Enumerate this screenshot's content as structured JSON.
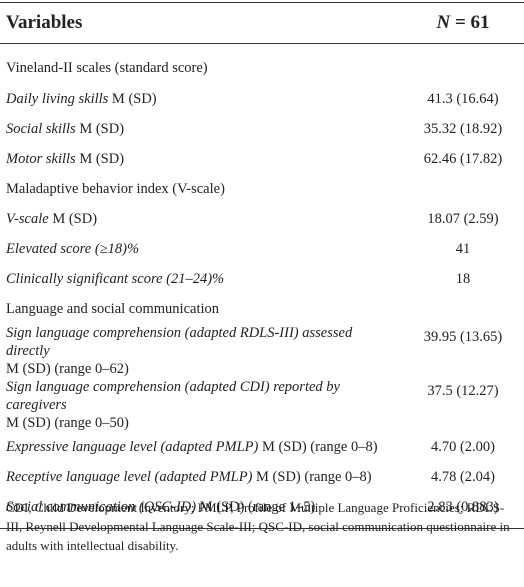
{
  "header": {
    "variables": "Variables",
    "n_symbol": "N",
    "n_value": "= 61"
  },
  "rows": [
    {
      "label": [
        {
          "text": "Vineland-II scales (standard score)",
          "italic": false
        }
      ]
    },
    {
      "label": [
        {
          "text": "Daily living skills",
          "italic": true
        },
        {
          "text": "M (SD)",
          "italic": false
        }
      ],
      "value": "41.3 (16.64)"
    },
    {
      "label": [
        {
          "text": "Social skills",
          "italic": true
        },
        {
          "text": "M (SD)",
          "italic": false
        }
      ],
      "value": "35.32 (18.92)"
    },
    {
      "label": [
        {
          "text": "Motor skills",
          "italic": true
        },
        {
          "text": "M (SD)",
          "italic": false
        }
      ],
      "value": "62.46 (17.82)"
    },
    {
      "label": [
        {
          "text": "Maladaptive behavior index (V-scale)",
          "italic": false
        }
      ]
    },
    {
      "label": [
        {
          "text": "V-scale",
          "italic": true
        },
        {
          "text": "M (SD)",
          "italic": false
        }
      ],
      "value": "18.07 (2.59)"
    },
    {
      "label": [
        {
          "text": "Elevated score (≥18)%",
          "italic": true
        }
      ],
      "value": "41"
    },
    {
      "label": [
        {
          "text": "Clinically significant score (21–24)%",
          "italic": true
        }
      ],
      "value": "18"
    },
    {
      "label": [
        {
          "text": "Language and social communication",
          "italic": false
        }
      ]
    },
    {
      "label": [
        {
          "text": "Sign language comprehension (adapted RDLS-III) assessed directly",
          "italic": true
        },
        {
          "text": "M (SD) (range 0–62)",
          "italic": false
        }
      ],
      "value": "39.95 (13.65)"
    },
    {
      "label": [
        {
          "text": "Sign language comprehension (adapted CDI) reported by caregivers",
          "italic": true
        },
        {
          "text": "M (SD) (range 0–50)",
          "italic": false
        }
      ],
      "value": "37.5 (12.27)"
    },
    {
      "label": [
        {
          "text": "Expressive language level (adapted PMLP)",
          "italic": true
        },
        {
          "text": "M (SD) (range 0–8)",
          "italic": false
        }
      ],
      "value": "4.70 (2.00)"
    },
    {
      "label": [
        {
          "text": "Receptive language level (adapted PMLP)",
          "italic": true
        },
        {
          "text": "M (SD) (range 0–8)",
          "italic": false
        }
      ],
      "value": "4.78 (2.04)"
    },
    {
      "label": [
        {
          "text": "Social communication (QSC-ID)",
          "italic": true
        },
        {
          "text": "M (SD) (range 1–5)",
          "italic": false
        }
      ],
      "value": "2.83 (0.883)"
    }
  ],
  "footnote": "CDI, Child Development Inventory; PMLP, Profile of Multiple Language Proficiencies; RDLS-III, Reynell Developmental Language Scale-III; QSC-ID, social communication questionnaire in adults with intellectual disability."
}
